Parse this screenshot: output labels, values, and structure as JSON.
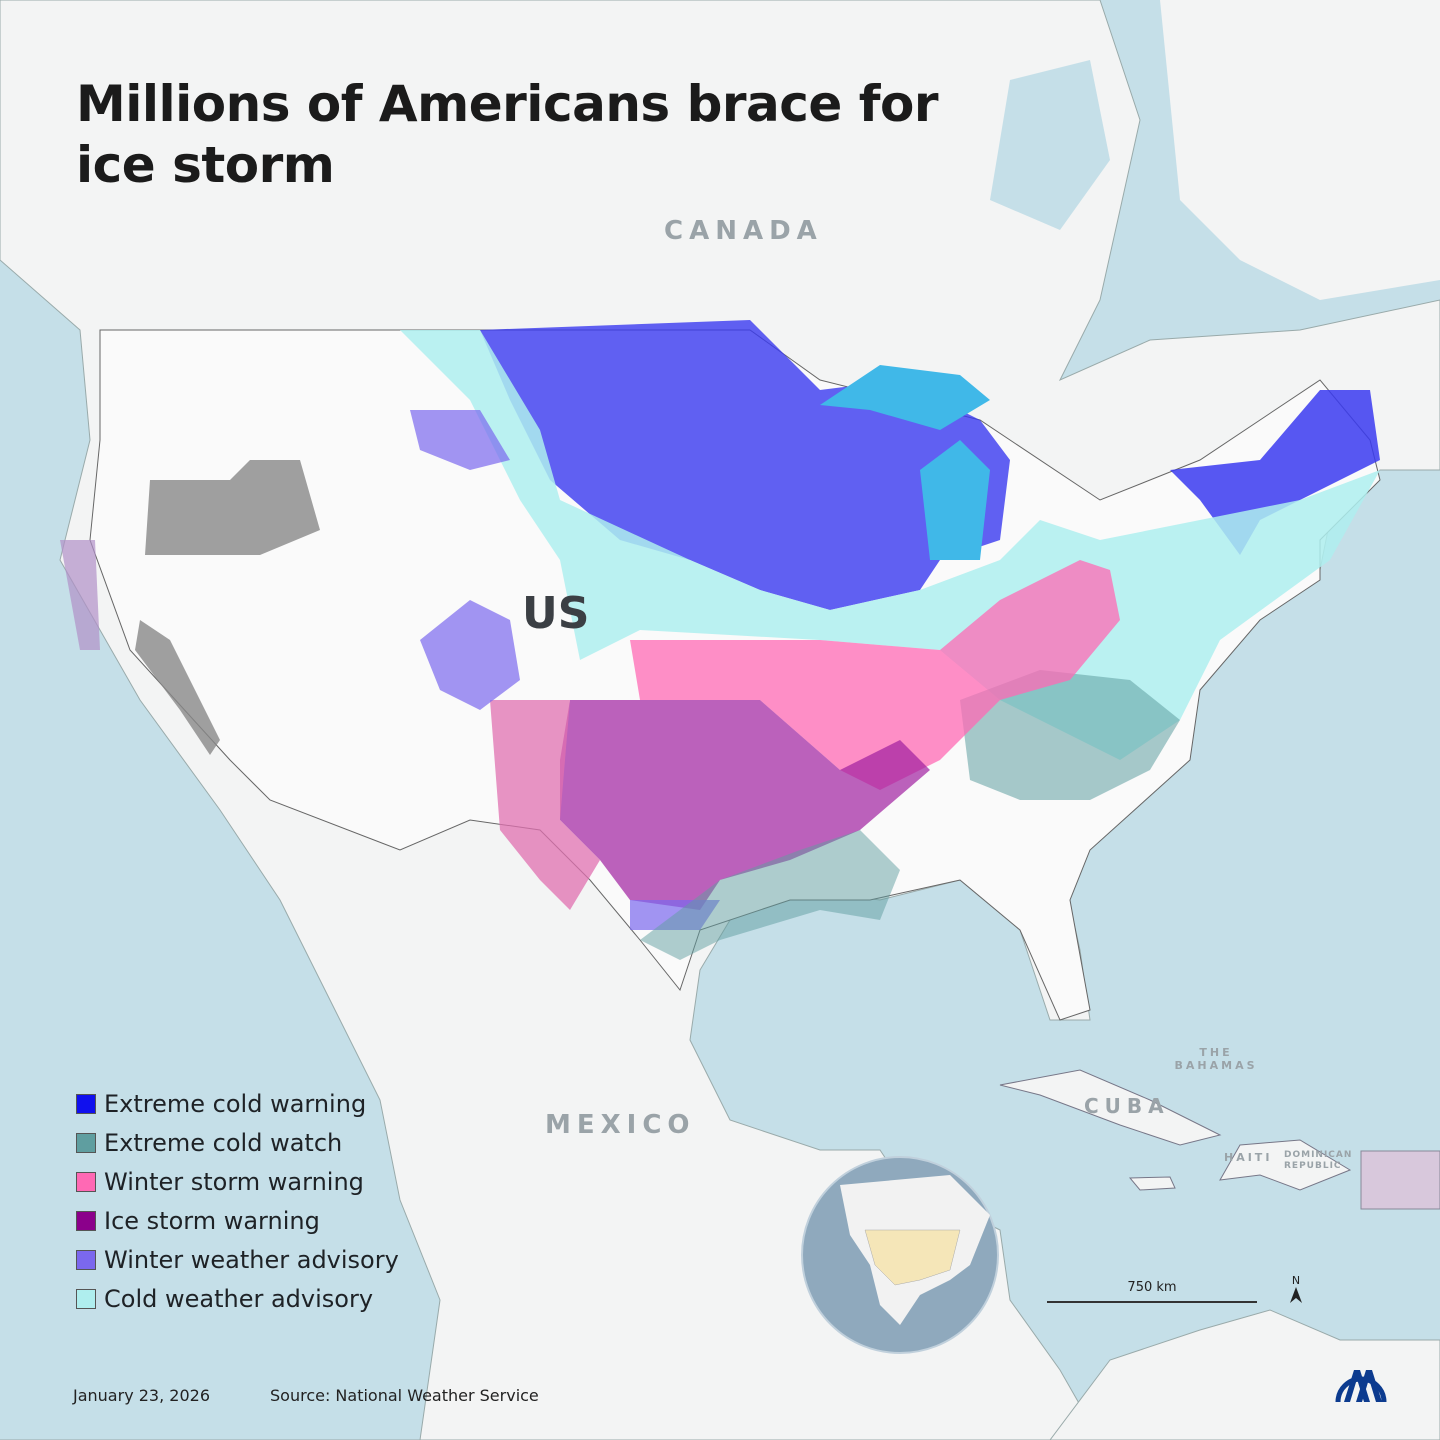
{
  "title": "Millions of Americans brace for ice storm",
  "labels": {
    "canada": "CANADA",
    "us": "US",
    "mexico": "MEXICO",
    "cuba": "CUBA",
    "bahamas": "THE BAHAMAS",
    "haiti": "HAITI",
    "dominican_republic": "DOMINICAN REPUBLIC"
  },
  "legend": [
    {
      "label": "Extreme cold warning",
      "color": "#1010ee"
    },
    {
      "label": "Extreme cold watch",
      "color": "#5f9ea0"
    },
    {
      "label": "Winter storm warning",
      "color": "#ff69b4"
    },
    {
      "label": "Ice storm warning",
      "color": "#8b008b"
    },
    {
      "label": "Winter weather advisory",
      "color": "#7b68ee"
    },
    {
      "label": "Cold weather advisory",
      "color": "#afeeee"
    }
  ],
  "scale": "750 km",
  "north": "N",
  "date": "January 23, 2026",
  "source": "Source: National Weather Service",
  "logo": "AA"
}
